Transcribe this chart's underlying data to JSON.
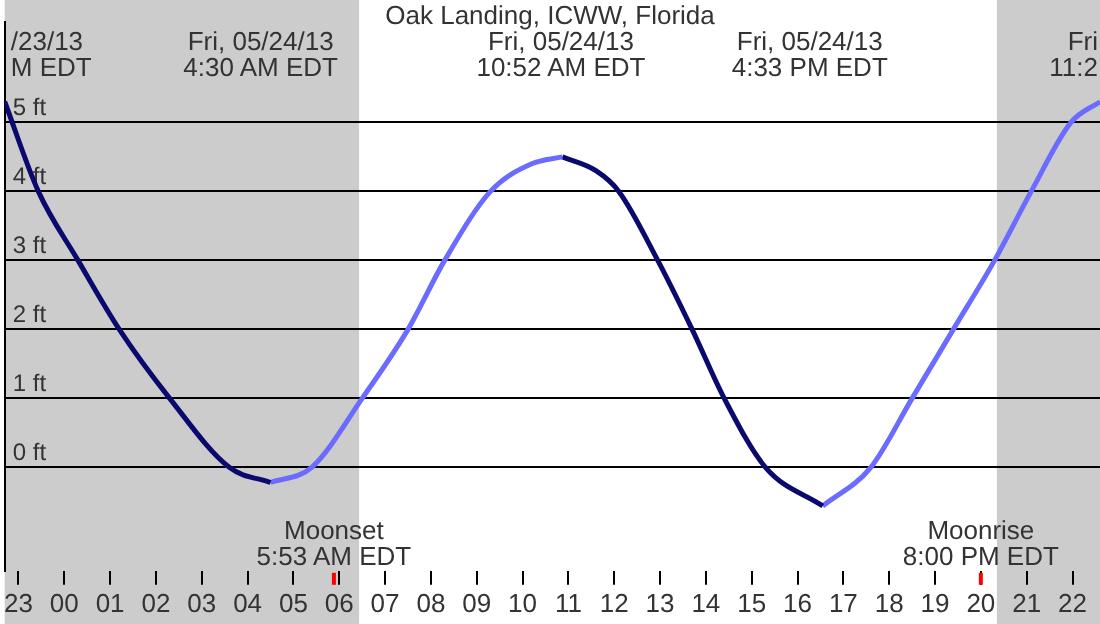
{
  "chart_data": {
    "type": "line",
    "title": "Oak Landing, ICWW, Florida",
    "series": [
      {
        "color": "#0a0a6e",
        "x": [
          "--05-23T22:42",
          "--05-23T23:26",
          "--05-24T00:18",
          "--05-24T01:12",
          "--05-24T02:18",
          "--05-24T03:36",
          "--05-24T04:30"
        ],
        "values": [
          5.3,
          4,
          3,
          2,
          1,
          0,
          -0.22
        ]
      },
      {
        "color": "#6b6bff",
        "x": [
          "--05-24T04:30",
          "--05-24T05:24",
          "--05-24T06:30",
          "--05-24T07:30",
          "--05-24T08:18",
          "--05-24T09:18",
          "--05-24T10:12",
          "--05-24T10:52"
        ],
        "values": [
          -0.22,
          0,
          1,
          2,
          3,
          4,
          4.4,
          4.5
        ]
      },
      {
        "color": "#0a0a6e",
        "x": [
          "--05-24T10:52",
          "--05-24T11:36",
          "--05-24T12:06",
          "--05-24T12:57",
          "--05-24T13:42",
          "--05-24T14:24",
          "--05-24T15:18",
          "--05-24T16:33"
        ],
        "values": [
          4.5,
          4.3,
          4,
          3,
          2,
          1,
          0,
          -0.56
        ]
      },
      {
        "color": "#6b6bff",
        "x": [
          "--05-24T16:33",
          "--05-24T17:36",
          "--05-24T18:30",
          "--05-24T19:24",
          "--05-24T20:18",
          "--05-24T21:06",
          "--05-24T21:58",
          "--05-24T22:36"
        ],
        "values": [
          -0.56,
          0,
          1,
          2,
          3,
          4,
          5,
          5.3
        ]
      }
    ],
    "xlim": [
      "--05-23T22:42",
      "--05-24T22:36"
    ],
    "ylim": [
      -1.5,
      6.45
    ],
    "xticks": [
      {
        "value": "--05-23T23:00",
        "label": "23"
      },
      {
        "value": "--05-24T00:00",
        "label": "00"
      },
      {
        "value": "--05-24T01:00",
        "label": "01"
      },
      {
        "value": "--05-24T02:00",
        "label": "02"
      },
      {
        "value": "--05-24T03:00",
        "label": "03"
      },
      {
        "value": "--05-24T04:00",
        "label": "04"
      },
      {
        "value": "--05-24T05:00",
        "label": "05"
      },
      {
        "value": "--05-24T06:00",
        "label": "06"
      },
      {
        "value": "--05-24T07:00",
        "label": "07"
      },
      {
        "value": "--05-24T08:00",
        "label": "08"
      },
      {
        "value": "--05-24T09:00",
        "label": "09"
      },
      {
        "value": "--05-24T10:00",
        "label": "10"
      },
      {
        "value": "--05-24T11:00",
        "label": "11"
      },
      {
        "value": "--05-24T12:00",
        "label": "12"
      },
      {
        "value": "--05-24T13:00",
        "label": "13"
      },
      {
        "value": "--05-24T14:00",
        "label": "14"
      },
      {
        "value": "--05-24T15:00",
        "label": "15"
      },
      {
        "value": "--05-24T16:00",
        "label": "16"
      },
      {
        "value": "--05-24T17:00",
        "label": "17"
      },
      {
        "value": "--05-24T18:00",
        "label": "18"
      },
      {
        "value": "--05-24T19:00",
        "label": "19"
      },
      {
        "value": "--05-24T20:00",
        "label": "20"
      },
      {
        "value": "--05-24T21:00",
        "label": "21"
      },
      {
        "value": "--05-24T22:00",
        "label": "22"
      }
    ],
    "yticks": [
      {
        "value": 0,
        "label": "0 ft"
      },
      {
        "value": 1,
        "label": "1 ft"
      },
      {
        "value": 2,
        "label": "2 ft"
      },
      {
        "value": 3,
        "label": "3 ft"
      },
      {
        "value": 4,
        "label": "4 ft"
      },
      {
        "value": 5,
        "label": "5 ft"
      }
    ],
    "grid": "y",
    "legend": false,
    "bands": [
      {
        "axis": "x",
        "from": "--05-23T22:42",
        "to": "--05-24T06:26",
        "color": "#cccccc"
      },
      {
        "axis": "x",
        "from": "--05-24T20:21",
        "to": "--05-24T22:36",
        "color": "#cccccc"
      }
    ],
    "ref_lines": [
      {
        "axis": "x",
        "value": "--05-24T05:53",
        "label": "Moonset\n5:53 AM EDT",
        "color": "#ff0000"
      },
      {
        "axis": "x",
        "value": "--05-24T20:00",
        "label": "Moonrise\n8:00 PM EDT",
        "color": "#ff0000"
      }
    ],
    "annotations": [
      "/23/13\nM EDT",
      "Fri, 05/24/13\n4:30 AM EDT",
      "Fri, 05/24/13\n10:52 AM EDT",
      "Fri, 05/24/13\n4:33 PM EDT",
      "Fri\n11:2"
    ]
  }
}
